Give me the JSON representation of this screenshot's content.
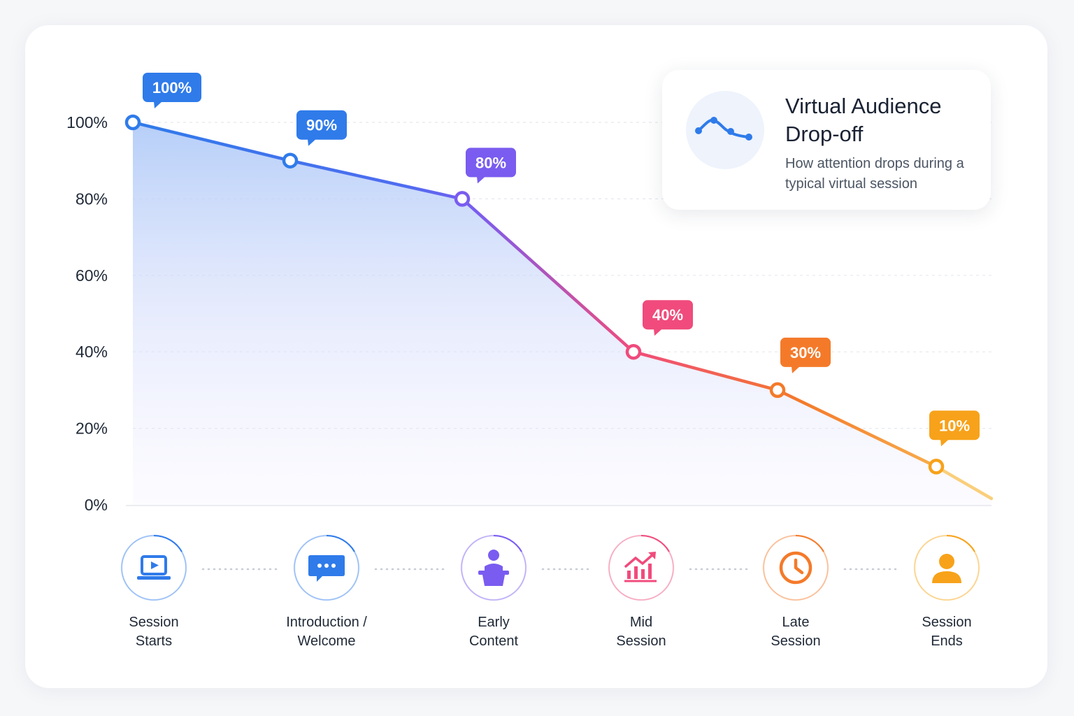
{
  "chart_data": {
    "type": "area",
    "title": "Virtual Audience Drop-off",
    "subtitle": "How attention drops during a typical virtual session",
    "categories": [
      "Session Starts",
      "Introduction / Welcome",
      "Early Content",
      "Mid Session",
      "Late Session",
      "Session Ends"
    ],
    "stage_lines": [
      [
        "Session",
        "Starts"
      ],
      [
        "Introduction /",
        "Welcome"
      ],
      [
        "Early",
        "Content"
      ],
      [
        "Mid",
        "Session"
      ],
      [
        "Late",
        "Session"
      ],
      [
        "Session",
        "Ends"
      ]
    ],
    "series": [
      {
        "values": [
          100,
          90,
          80,
          40,
          30,
          10
        ],
        "data_labels": [
          "100%",
          "90%",
          "80%",
          "40%",
          "30%",
          "10%"
        ]
      }
    ],
    "ylim": [
      0,
      100
    ],
    "yticks": [
      "0%",
      "20%",
      "40%",
      "60%",
      "80%",
      "100%"
    ],
    "grid": true,
    "legend": "top-right",
    "point_colors": [
      "#2f7bea",
      "#2f7bea",
      "#7a5cf0",
      "#f04b7c",
      "#f47a2a",
      "#f7a21a"
    ],
    "stage_icons": [
      "laptop-play-icon",
      "chat-bubble-icon",
      "presenter-icon",
      "chart-growth-icon",
      "clock-icon",
      "user-icon"
    ]
  }
}
